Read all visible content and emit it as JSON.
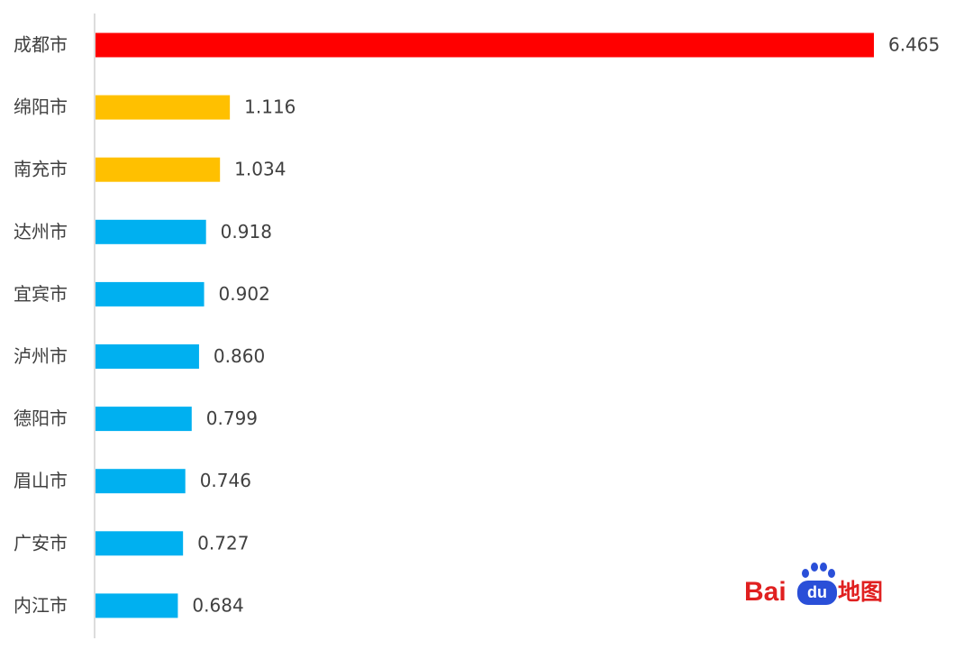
{
  "chart_data": {
    "type": "hbar",
    "categories": [
      "成都市",
      "绵阳市",
      "南充市",
      "达州市",
      "宜宾市",
      "泸州市",
      "德阳市",
      "眉山市",
      "广安市",
      "内江市"
    ],
    "values": [
      6.465,
      1.116,
      1.034,
      0.918,
      0.902,
      0.86,
      0.799,
      0.746,
      0.727,
      0.684
    ],
    "value_labels": [
      "6.465",
      "1.116",
      "1.034",
      "0.918",
      "0.902",
      "0.860",
      "0.799",
      "0.746",
      "0.727",
      "0.684"
    ],
    "colors": [
      "#ff0000",
      "#ffc000",
      "#ffc000",
      "#00b0f0",
      "#00b0f0",
      "#00b0f0",
      "#00b0f0",
      "#00b0f0",
      "#00b0f0",
      "#00b0f0"
    ]
  },
  "logo": {
    "brand": "Bai",
    "badge": "du",
    "suffix": "地图"
  }
}
